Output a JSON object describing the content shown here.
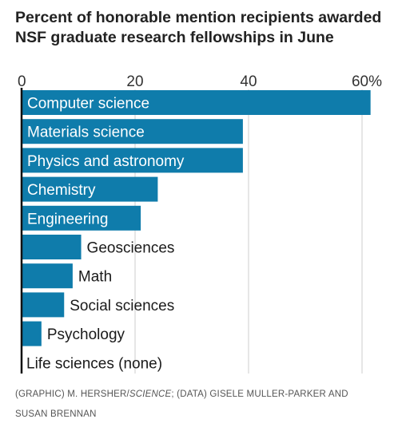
{
  "title_line1": "Percent of honorable mention recipients awarded",
  "title_line2": "NSF graduate research fellowships in June",
  "credit": {
    "graphic_prefix": "(GRAPHIC) M. HERSHER/",
    "graphic_pub": "SCIENCE",
    "data_line1": "; (DATA) GISELE MULLER-PARKER AND",
    "data_line2": "SUSAN BRENNAN"
  },
  "colors": {
    "bar": "#0f7cab",
    "inside_label": "#ffffff",
    "outside_label": "#1a1a1a",
    "grid": "#cccccc",
    "axis": "#111111"
  },
  "chart_data": {
    "type": "bar",
    "orientation": "horizontal",
    "categories": [
      "Computer science",
      "Materials science",
      "Physics and astronomy",
      "Chemistry",
      "Engineering",
      "Geosciences",
      "Math",
      "Social sciences",
      "Psychology",
      "Life sciences (none)"
    ],
    "values": [
      61.5,
      39,
      39,
      24,
      21,
      10.5,
      9,
      7.5,
      3.5,
      0
    ],
    "xticks": [
      "0",
      "20",
      "40",
      "60%"
    ],
    "xtick_values": [
      0,
      20,
      40,
      60
    ],
    "xlim": [
      0,
      62
    ],
    "label_inside": [
      true,
      true,
      true,
      true,
      true,
      false,
      false,
      false,
      false,
      false
    ],
    "grid": true,
    "xlabel": "",
    "ylabel": ""
  }
}
